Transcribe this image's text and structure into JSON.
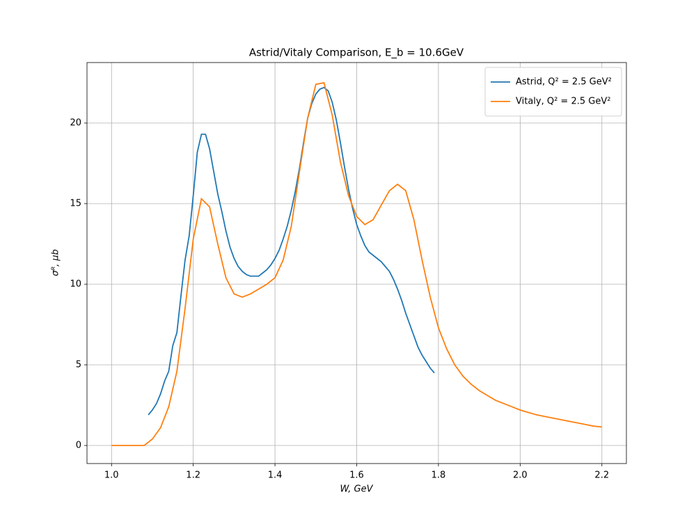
{
  "chart_data": {
    "type": "line",
    "title": "Astrid/Vitaly Comparison, E_b = 10.6GeV",
    "x_label": "W, GeV",
    "y_label": "σᴿ, μb",
    "xlim": [
      0.94,
      2.26
    ],
    "ylim": [
      -1.12,
      23.75
    ],
    "xticks": [
      {
        "value": 1,
        "label": "1.0"
      },
      1.2,
      1.4,
      1.6,
      1.8,
      {
        "value": 2,
        "label": "2.0"
      },
      2.2
    ],
    "yticks": [
      0,
      5,
      10,
      15,
      20
    ],
    "grid": true,
    "legend": "upper right",
    "series": [
      {
        "name": "Astrid, Q² = 2.5 GeV²",
        "color": "#1f77b4",
        "x": [
          1.09,
          1.1,
          1.11,
          1.12,
          1.13,
          1.14,
          1.15,
          1.16,
          1.17,
          1.18,
          1.19,
          1.2,
          1.21,
          1.22,
          1.23,
          1.24,
          1.25,
          1.26,
          1.27,
          1.28,
          1.29,
          1.3,
          1.31,
          1.32,
          1.33,
          1.34,
          1.35,
          1.36,
          1.37,
          1.38,
          1.39,
          1.4,
          1.41,
          1.42,
          1.43,
          1.44,
          1.45,
          1.46,
          1.47,
          1.48,
          1.49,
          1.5,
          1.51,
          1.52,
          1.53,
          1.54,
          1.55,
          1.56,
          1.57,
          1.58,
          1.59,
          1.6,
          1.61,
          1.62,
          1.63,
          1.64,
          1.65,
          1.66,
          1.67,
          1.68,
          1.69,
          1.7,
          1.71,
          1.72,
          1.73,
          1.74,
          1.75,
          1.76,
          1.77,
          1.78,
          1.79
        ],
        "values": [
          1.9,
          2.2,
          2.6,
          3.2,
          4.0,
          4.6,
          6.2,
          7.0,
          9.3,
          11.5,
          13.0,
          15.5,
          18.2,
          19.3,
          19.3,
          18.4,
          17.0,
          15.6,
          14.5,
          13.3,
          12.3,
          11.6,
          11.1,
          10.8,
          10.6,
          10.5,
          10.5,
          10.5,
          10.7,
          10.9,
          11.2,
          11.6,
          12.1,
          12.8,
          13.6,
          14.6,
          15.8,
          17.2,
          18.8,
          20.3,
          21.2,
          21.8,
          22.1,
          22.2,
          22.0,
          21.3,
          20.2,
          18.8,
          17.3,
          15.9,
          14.7,
          13.7,
          13.0,
          12.4,
          12.0,
          11.8,
          11.6,
          11.4,
          11.1,
          10.8,
          10.3,
          9.7,
          9.0,
          8.2,
          7.5,
          6.8,
          6.1,
          5.6,
          5.2,
          4.8,
          4.5
        ]
      },
      {
        "name": "Vitaly, Q² = 2.5 GeV²",
        "color": "#ff7f0e",
        "x": [
          1.0,
          1.02,
          1.04,
          1.06,
          1.08,
          1.1,
          1.12,
          1.14,
          1.16,
          1.18,
          1.2,
          1.22,
          1.24,
          1.26,
          1.28,
          1.3,
          1.32,
          1.34,
          1.36,
          1.38,
          1.4,
          1.42,
          1.44,
          1.46,
          1.48,
          1.5,
          1.52,
          1.54,
          1.56,
          1.58,
          1.6,
          1.62,
          1.64,
          1.66,
          1.68,
          1.7,
          1.72,
          1.74,
          1.76,
          1.78,
          1.8,
          1.82,
          1.84,
          1.86,
          1.88,
          1.9,
          1.92,
          1.94,
          1.96,
          1.98,
          2.0,
          2.02,
          2.04,
          2.06,
          2.08,
          2.1,
          2.12,
          2.14,
          2.16,
          2.18,
          2.2
        ],
        "values": [
          0,
          0,
          0,
          0,
          0,
          0.4,
          1.1,
          2.4,
          4.6,
          8.5,
          12.8,
          15.3,
          14.8,
          12.5,
          10.4,
          9.4,
          9.2,
          9.4,
          9.7,
          10.0,
          10.4,
          11.5,
          13.6,
          17.0,
          20.3,
          22.4,
          22.5,
          20.5,
          17.6,
          15.5,
          14.2,
          13.7,
          14.0,
          14.9,
          15.8,
          16.2,
          15.8,
          14.0,
          11.5,
          9.2,
          7.3,
          6.0,
          5.0,
          4.3,
          3.8,
          3.4,
          3.1,
          2.8,
          2.6,
          2.4,
          2.2,
          2.05,
          1.9,
          1.8,
          1.7,
          1.6,
          1.5,
          1.4,
          1.3,
          1.2,
          1.15
        ]
      }
    ]
  }
}
